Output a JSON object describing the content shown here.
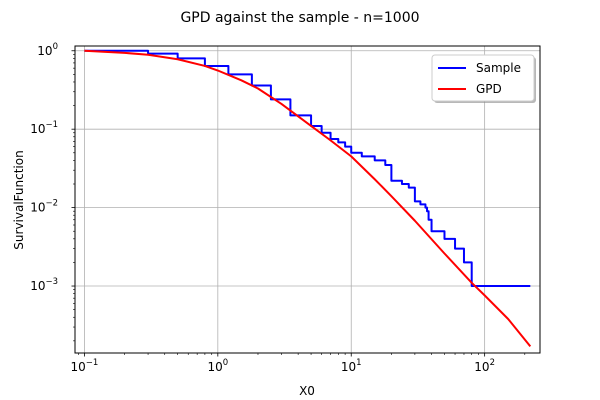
{
  "chart_data": {
    "type": "line",
    "title": "GPD against the sample - n=1000",
    "xlabel": "X0",
    "ylabel": "SurvivalFunction",
    "xscale": "log",
    "yscale": "log",
    "xlim": [
      0.085,
      260
    ],
    "ylim": [
      0.00014,
      1.15
    ],
    "xticks": [
      {
        "value": 0.1,
        "base": "10",
        "exp": "−1"
      },
      {
        "value": 1,
        "base": "10",
        "exp": "0"
      },
      {
        "value": 10,
        "base": "10",
        "exp": "1"
      },
      {
        "value": 100,
        "base": "10",
        "exp": "2"
      }
    ],
    "yticks": [
      {
        "value": 0.001,
        "base": "10",
        "exp": "−3"
      },
      {
        "value": 0.01,
        "base": "10",
        "exp": "−2"
      },
      {
        "value": 0.1,
        "base": "10",
        "exp": "−1"
      },
      {
        "value": 1,
        "base": "10",
        "exp": "0"
      }
    ],
    "grid": true,
    "legend": "top-right",
    "series": [
      {
        "name": "Sample",
        "color": "#0000ff",
        "step": true,
        "x": [
          0.1,
          0.3,
          0.5,
          0.8,
          1.2,
          1.8,
          2.5,
          3.5,
          5,
          6,
          7,
          8,
          9,
          10,
          12,
          15,
          18,
          20,
          24,
          27,
          30,
          33,
          36,
          37,
          38,
          40,
          50,
          60,
          70,
          80,
          90,
          220
        ],
        "y": [
          1.0,
          0.92,
          0.8,
          0.64,
          0.5,
          0.36,
          0.24,
          0.15,
          0.11,
          0.09,
          0.075,
          0.068,
          0.06,
          0.05,
          0.045,
          0.04,
          0.035,
          0.022,
          0.02,
          0.018,
          0.012,
          0.011,
          0.01,
          0.009,
          0.007,
          0.005,
          0.004,
          0.003,
          0.002,
          0.001,
          0.001,
          0.001
        ]
      },
      {
        "name": "GPD",
        "color": "#ff0000",
        "step": false,
        "x": [
          0.1,
          0.2,
          0.3,
          0.5,
          0.8,
          1.0,
          1.5,
          2.0,
          3.0,
          5.0,
          7.0,
          10,
          15,
          20,
          30,
          50,
          80,
          100,
          150,
          220
        ],
        "y": [
          1.0,
          0.94,
          0.89,
          0.78,
          0.64,
          0.56,
          0.42,
          0.33,
          0.21,
          0.11,
          0.072,
          0.045,
          0.023,
          0.014,
          0.0068,
          0.0026,
          0.0011,
          0.00076,
          0.00038,
          0.00017
        ]
      }
    ]
  }
}
